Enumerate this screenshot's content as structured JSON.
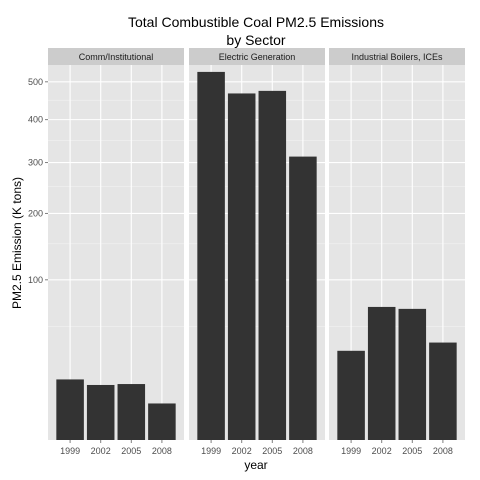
{
  "chart_data": {
    "type": "bar",
    "title": "Total Combustible Coal PM2.5 Emissions",
    "subtitle": "by Sector",
    "xlabel": "year",
    "ylabel": "PM2.5 Emission (K tons)",
    "y_scale": "sqrt",
    "ylim": [
      0,
      600
    ],
    "y_ticks": [
      100,
      200,
      300,
      400,
      500
    ],
    "categories": [
      "1999",
      "2002",
      "2005",
      "2008"
    ],
    "grid": true,
    "panels": [
      {
        "label": "Comm/Institutional",
        "values": [
          14.3,
          11.8,
          12.2,
          5.2
        ]
      },
      {
        "label": "Electric Generation",
        "values": [
          528,
          468,
          475,
          313
        ]
      },
      {
        "label": "Industrial Boilers, ICEs",
        "values": [
          31,
          69,
          67,
          37
        ]
      }
    ],
    "colors": {
      "panel_bg": "#e5e5e5",
      "strip_bg": "#cccccc",
      "grid_major": "#ffffff",
      "grid_minor": "#f2f2f2",
      "bar": "#333333"
    }
  }
}
